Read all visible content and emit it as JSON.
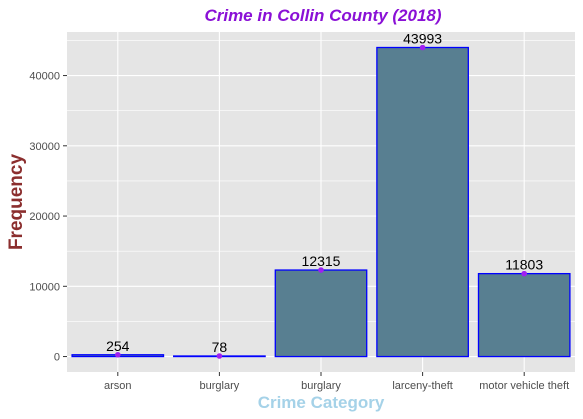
{
  "chart_data": {
    "type": "bar",
    "title": "Crime in Collin County (2018)",
    "xlabel": "Crime Category",
    "ylabel": "Frequency",
    "categories": [
      "arson",
      "burglary",
      "burglary",
      "larceny-theft",
      "motor vehicle theft"
    ],
    "values": [
      254,
      78,
      12315,
      43993,
      11803
    ],
    "data_labels": [
      "254",
      "78",
      "12315",
      "43993",
      "11803"
    ],
    "yticks": [
      0,
      10000,
      20000,
      30000,
      40000
    ],
    "ytick_labels": [
      "0",
      "10000",
      "20000",
      "30000",
      "40000"
    ],
    "ylim": [
      -2200,
      46200
    ],
    "grid": true,
    "legend": "none",
    "colors": {
      "title": "#8a10d6",
      "ylabel": "#8b2e2e",
      "xlabel": "#a5d2e8",
      "panel": "#e5e5e5",
      "grid": "#ffffff",
      "bar_fill": "#587f91",
      "bar_stroke": "#0000ff",
      "point": "#a020f0"
    }
  }
}
